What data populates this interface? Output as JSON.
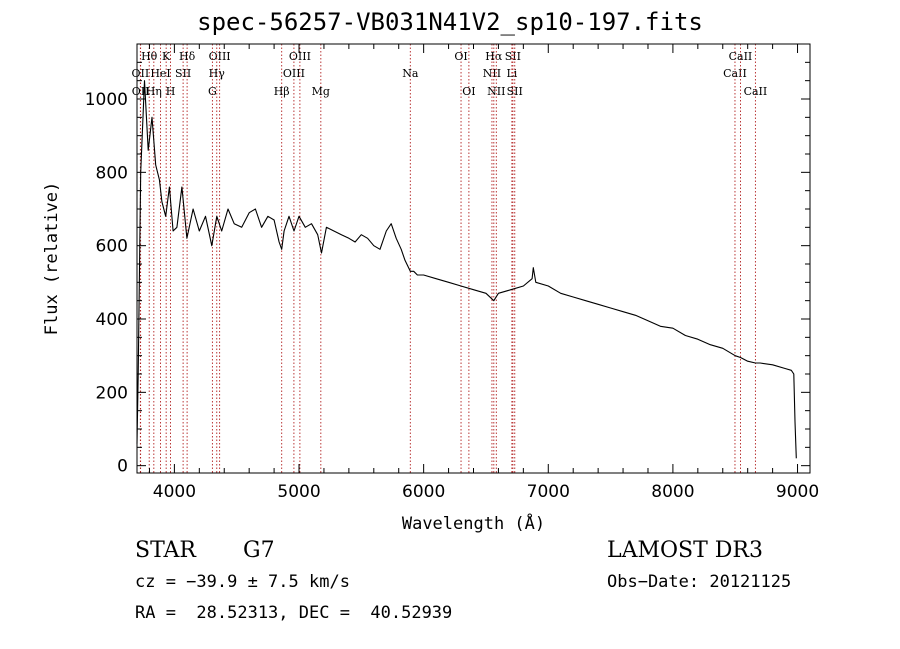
{
  "chart_data": {
    "type": "line",
    "title": "spec-56257-VB031N41V2_sp10-197.fits",
    "xlabel": "Wavelength (Å)",
    "ylabel": "Flux (relative)",
    "xlim": [
      3700,
      9100
    ],
    "ylim": [
      -20,
      1150
    ],
    "xticks": [
      4000,
      5000,
      6000,
      7000,
      8000,
      9000
    ],
    "yticks": [
      0,
      200,
      400,
      600,
      800,
      1000
    ],
    "xtick_labels": [
      "4000",
      "5000",
      "6000",
      "7000",
      "8000",
      "9000"
    ],
    "ytick_labels": [
      "0",
      "200",
      "400",
      "600",
      "800",
      "1000"
    ],
    "grid": false,
    "series": [
      {
        "name": "flux",
        "x": [
          3700,
          3710,
          3730,
          3760,
          3790,
          3820,
          3850,
          3880,
          3900,
          3930,
          3960,
          3990,
          4020,
          4060,
          4100,
          4150,
          4200,
          4250,
          4300,
          4340,
          4380,
          4430,
          4480,
          4540,
          4600,
          4650,
          4700,
          4750,
          4800,
          4840,
          4861,
          4880,
          4920,
          4960,
          5000,
          5050,
          5100,
          5150,
          5180,
          5220,
          5280,
          5340,
          5400,
          5450,
          5500,
          5550,
          5600,
          5650,
          5700,
          5740,
          5780,
          5820,
          5850,
          5893,
          5920,
          5950,
          6000,
          6100,
          6200,
          6300,
          6400,
          6500,
          6563,
          6600,
          6700,
          6800,
          6870,
          6880,
          6900,
          7000,
          7100,
          7200,
          7300,
          7400,
          7500,
          7600,
          7700,
          7800,
          7900,
          8000,
          8100,
          8200,
          8300,
          8400,
          8500,
          8542,
          8600,
          8662,
          8700,
          8800,
          8900,
          8950,
          8970,
          8980,
          8990
        ],
        "y": [
          60,
          250,
          800,
          1050,
          860,
          950,
          820,
          780,
          720,
          680,
          760,
          640,
          650,
          760,
          620,
          700,
          640,
          680,
          600,
          680,
          640,
          700,
          660,
          650,
          690,
          700,
          650,
          680,
          670,
          610,
          590,
          640,
          680,
          640,
          680,
          650,
          660,
          630,
          580,
          650,
          640,
          630,
          620,
          610,
          630,
          620,
          600,
          590,
          640,
          660,
          620,
          590,
          560,
          530,
          530,
          520,
          520,
          510,
          500,
          490,
          480,
          470,
          450,
          470,
          480,
          490,
          510,
          540,
          500,
          490,
          470,
          460,
          450,
          440,
          430,
          420,
          410,
          395,
          380,
          375,
          355,
          345,
          330,
          320,
          300,
          295,
          285,
          280,
          280,
          275,
          265,
          260,
          250,
          120,
          20
        ]
      }
    ],
    "lines": [
      {
        "name": "Hθ",
        "x": 3798,
        "row": 0
      },
      {
        "name": "OII",
        "x": 3727,
        "row": 1
      },
      {
        "name": "OII",
        "x": 3729,
        "row": 2
      },
      {
        "name": "HeI",
        "x": 3889,
        "row": 1
      },
      {
        "name": "Hη",
        "x": 3835,
        "row": 2
      },
      {
        "name": "K",
        "x": 3934,
        "row": 0
      },
      {
        "name": "H",
        "x": 3969,
        "row": 2
      },
      {
        "name": "SII",
        "x": 4070,
        "row": 1
      },
      {
        "name": "Hδ",
        "x": 4102,
        "row": 0
      },
      {
        "name": "OIII",
        "x": 4363,
        "row": 0
      },
      {
        "name": "Hγ",
        "x": 4340,
        "row": 1
      },
      {
        "name": "G",
        "x": 4305,
        "row": 2
      },
      {
        "name": "Hβ",
        "x": 4861,
        "row": 2
      },
      {
        "name": "OIII",
        "x": 4959,
        "row": 1
      },
      {
        "name": "OIII",
        "x": 5007,
        "row": 0
      },
      {
        "name": "Mg",
        "x": 5175,
        "row": 2
      },
      {
        "name": "Na",
        "x": 5893,
        "row": 1
      },
      {
        "name": "OI",
        "x": 6300,
        "row": 0
      },
      {
        "name": "OI",
        "x": 6363,
        "row": 2
      },
      {
        "name": "NII",
        "x": 6548,
        "row": 1
      },
      {
        "name": "Hα",
        "x": 6563,
        "row": 0
      },
      {
        "name": "NII",
        "x": 6583,
        "row": 2
      },
      {
        "name": "SII",
        "x": 6716,
        "row": 0
      },
      {
        "name": "Li",
        "x": 6708,
        "row": 1
      },
      {
        "name": "SII",
        "x": 6731,
        "row": 2
      },
      {
        "name": "CaII",
        "x": 8498,
        "row": 1
      },
      {
        "name": "CaII",
        "x": 8542,
        "row": 0
      },
      {
        "name": "CaII",
        "x": 8662,
        "row": 2
      }
    ]
  },
  "info": {
    "class": "STAR",
    "subclass": "G7",
    "survey": "LAMOST DR3",
    "cz": "cz = −39.9 ± 7.5 km/s",
    "obs_date": "Obs−Date: 20121125",
    "radec": "RA =  28.52313, DEC =  40.52939"
  },
  "colors": {
    "axis": "#000000",
    "spectrum": "#000000",
    "line_marker": "#b22222"
  }
}
